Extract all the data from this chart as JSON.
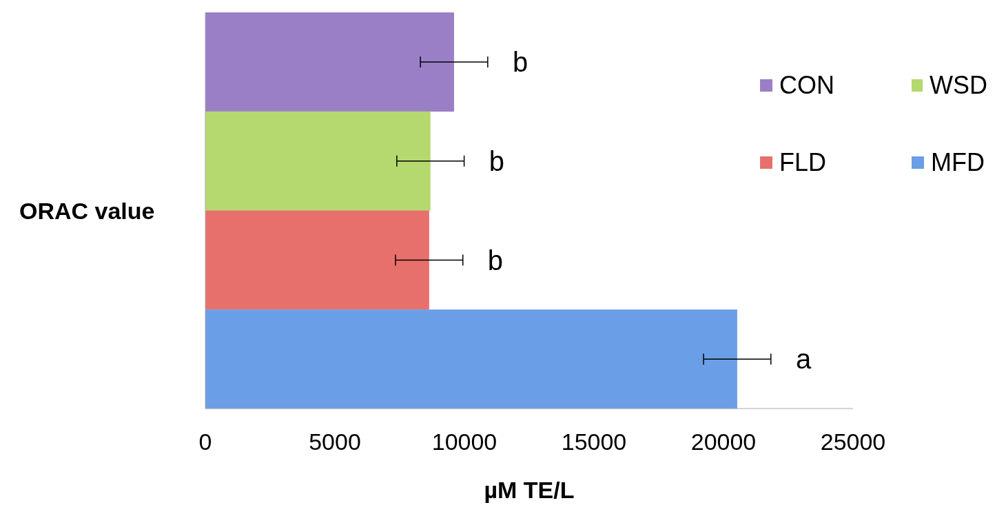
{
  "chart_data": {
    "type": "bar",
    "orientation": "horizontal",
    "stacked": true,
    "categories": [
      null,
      null,
      null,
      null
    ],
    "xlabel": "µM TE/L",
    "ylabel": "ORAC value",
    "series": [
      {
        "name": "CON",
        "color": "#9b7fc6",
        "values": [
          9600,
          null,
          null,
          null
        ],
        "errors": [
          1300,
          null,
          null,
          null
        ],
        "value_labels": [
          "b",
          null,
          null,
          null
        ]
      },
      {
        "name": "WSD",
        "color": "#b5d96e",
        "values": [
          null,
          8690,
          null,
          null
        ],
        "errors": [
          null,
          1300,
          null,
          null
        ],
        "value_labels": [
          null,
          "b",
          null,
          null
        ]
      },
      {
        "name": "FLD",
        "color": "#e8706c",
        "values": [
          null,
          null,
          8640,
          null
        ],
        "errors": [
          null,
          null,
          1300,
          null
        ],
        "value_labels": [
          null,
          null,
          "b",
          null
        ]
      },
      {
        "name": "MFD",
        "color": "#6a9ee6",
        "values": [
          null,
          null,
          null,
          20530
        ],
        "errors": [
          null,
          null,
          null,
          1300
        ],
        "value_labels": [
          null,
          null,
          null,
          "a"
        ]
      }
    ],
    "xlim": [
      0,
      25000
    ],
    "xticks": [
      0,
      5000,
      10000,
      15000,
      20000,
      25000
    ],
    "legend": "right",
    "grid": false
  }
}
